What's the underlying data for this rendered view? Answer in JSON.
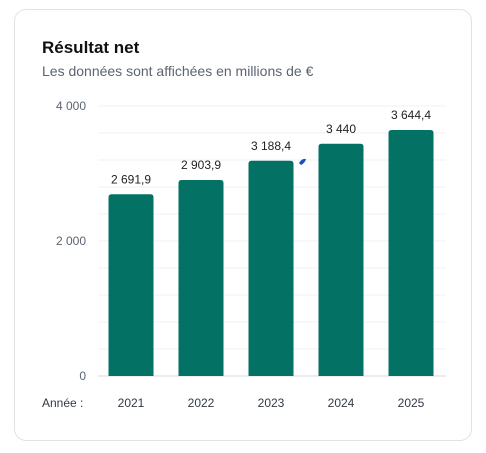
{
  "card": {
    "title": "Résultat net",
    "subtitle": "Les données sont affichées en millions de €"
  },
  "x_prefix": "Année :",
  "colors": {
    "bar": "#037264",
    "marker": "#1a4fc4"
  },
  "chart_data": {
    "type": "bar",
    "categories": [
      "2021",
      "2022",
      "2023",
      "2024",
      "2025"
    ],
    "values": [
      2691.9,
      2903.9,
      3188.4,
      3440,
      3644.4
    ],
    "data_labels": [
      "2 691,9",
      "2 903,9",
      "3 188,4",
      "3 440",
      "3 644,4"
    ],
    "ylim": [
      0,
      4000
    ],
    "y_ticks": [
      0,
      2000,
      4000
    ],
    "y_tick_labels": [
      "0",
      "2 000",
      "4 000"
    ],
    "minor_gridlines_every": 400,
    "title": "Résultat net",
    "xlabel": "Année :",
    "ylabel": "",
    "grid": true
  }
}
